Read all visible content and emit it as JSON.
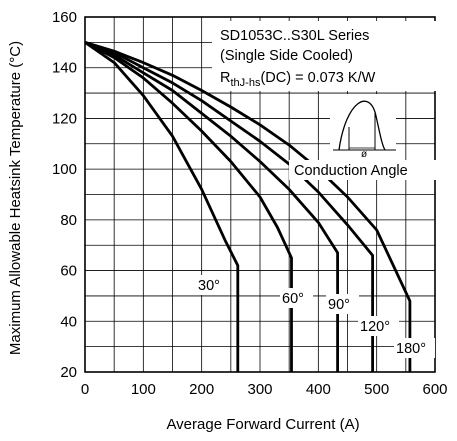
{
  "chart_data": {
    "type": "line",
    "title": "",
    "xlabel": "Average Forward Current (A)",
    "ylabel": "Maximum Allowable Heatsink Temperature (°C)",
    "xlim": [
      0,
      600
    ],
    "ylim": [
      20,
      160
    ],
    "x_ticks": [
      "0",
      "100",
      "200",
      "300",
      "400",
      "500",
      "600"
    ],
    "y_ticks": [
      "20",
      "40",
      "60",
      "80",
      "100",
      "120",
      "140",
      "160"
    ],
    "grid": true,
    "legend": "none",
    "annotation": {
      "series_line": "SD1053C..S30L Series",
      "cooling_line": "(Single Side Cooled)",
      "rth_main": "R",
      "rth_sub": "thJ-hs",
      "rth_value": "(DC) = 0.073 K/W",
      "conduction_label": "Conduction Angle",
      "phi_symbol": "ø"
    },
    "series": [
      {
        "name": "30°",
        "x": [
          0,
          50,
          100,
          150,
          200,
          240,
          262,
          262
        ],
        "y": [
          150,
          142,
          129,
          113,
          92,
          72,
          62,
          20
        ]
      },
      {
        "name": "60°",
        "x": [
          0,
          50,
          100,
          150,
          200,
          250,
          300,
          330,
          354,
          354
        ],
        "y": [
          150,
          144,
          136,
          126,
          115,
          103,
          89,
          77,
          65,
          20
        ]
      },
      {
        "name": "90°",
        "x": [
          0,
          50,
          100,
          150,
          200,
          250,
          300,
          350,
          400,
          433,
          433
        ],
        "y": [
          150,
          145,
          138,
          131,
          122,
          113,
          103,
          92,
          79,
          67,
          20
        ]
      },
      {
        "name": "120°",
        "x": [
          0,
          50,
          100,
          150,
          200,
          250,
          300,
          350,
          400,
          450,
          493,
          493
        ],
        "y": [
          150,
          146,
          140,
          134,
          127,
          119,
          111,
          102,
          91,
          78,
          66,
          20
        ]
      },
      {
        "name": "180°",
        "x": [
          0,
          50,
          100,
          150,
          200,
          250,
          300,
          350,
          400,
          450,
          500,
          557,
          557
        ],
        "y": [
          150,
          146.5,
          142,
          137,
          131,
          124.5,
          117.5,
          109.5,
          100,
          89,
          76,
          48,
          20
        ]
      }
    ]
  }
}
